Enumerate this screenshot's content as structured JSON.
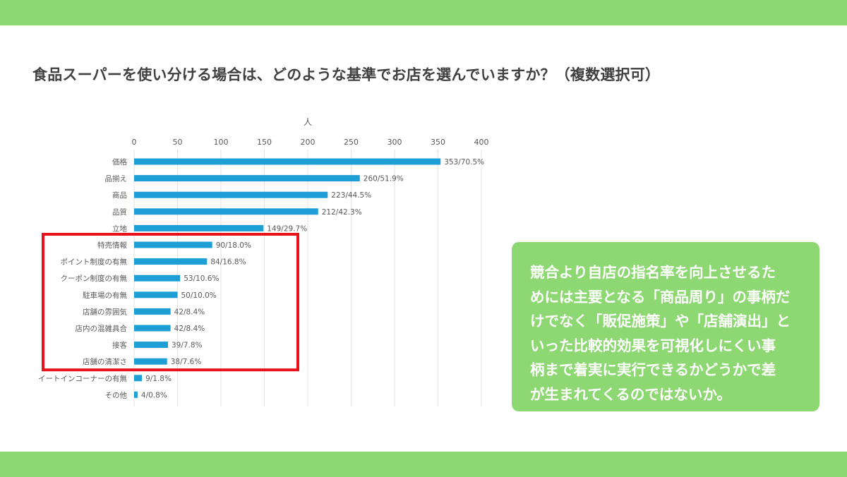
{
  "title": "食品スーパーを使い分ける場合は、どのような基準でお店を選んでいますか？（複数選択可）",
  "colors": {
    "band": "#8ed873",
    "bar": "#1d9fd6",
    "highlight_box": "#e8121b",
    "callout_bg": "#8ed873",
    "callout_text": "#ffffff"
  },
  "callout": {
    "lines": [
      "競合より自店の指名率を向上させるた",
      "めには主要となる「商品周り」の事柄だ",
      "けでなく「販促施策」や「店舗演出」と",
      "いった比較的効果を可視化しにくい事",
      "柄まで着実に実行できるかどうかで差",
      "が生まれてくるのではないか。"
    ]
  },
  "chart_data": {
    "type": "bar",
    "orientation": "horizontal",
    "axis_unit_label": "人",
    "xlim": [
      0,
      400
    ],
    "ticks": [
      0,
      50,
      100,
      150,
      200,
      250,
      300,
      350,
      400
    ],
    "grid": true,
    "categories": [
      "価格",
      "品揃え",
      "商品",
      "品質",
      "立地",
      "特売情報",
      "ポイント制度の有無",
      "クーポン制度の有無",
      "駐車場の有無",
      "店舗の雰囲気",
      "店内の混雑具合",
      "接客",
      "店舗の清潔さ",
      "イートインコーナーの有無",
      "その他"
    ],
    "values": [
      353,
      260,
      223,
      212,
      149,
      90,
      84,
      53,
      50,
      42,
      42,
      39,
      38,
      9,
      4
    ],
    "data_labels": [
      "353/70.5%",
      "260/51.9%",
      "223/44.5%",
      "212/42.3%",
      "149/29.7%",
      "90/18.0%",
      "84/16.8%",
      "53/10.6%",
      "50/10.0%",
      "42/8.4%",
      "42/8.4%",
      "39/7.8%",
      "38/7.6%",
      "9/1.8%",
      "4/0.8%"
    ],
    "highlighted_categories": [
      "特売情報",
      "ポイント制度の有無",
      "クーポン制度の有無",
      "駐車場の有無",
      "店舗の雰囲気",
      "店内の混雑具合",
      "接客",
      "店舗の清潔さ"
    ]
  }
}
